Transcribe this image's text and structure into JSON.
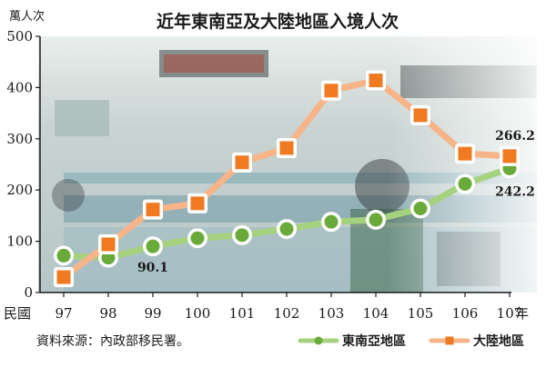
{
  "chart_data": {
    "type": "line",
    "title": "近年東南亞及大陸地區入境人次",
    "y_unit": "萬人次",
    "x_unit_left": "民國",
    "x_unit_right": "年",
    "x": [
      "97",
      "98",
      "99",
      "100",
      "101",
      "102",
      "103",
      "104",
      "105",
      "106",
      "107"
    ],
    "ylim": [
      0,
      500
    ],
    "y_ticks": [
      0,
      100,
      200,
      300,
      400,
      500
    ],
    "grid": false,
    "legend_position": "bottom-right",
    "series": [
      {
        "name": "東南亞地區",
        "color": "#a6d27f",
        "marker_color": "#6aaa3a",
        "values": [
          72,
          68,
          90.1,
          106,
          112,
          124,
          138,
          142,
          164,
          212,
          242.2
        ]
      },
      {
        "name": "大陸地區",
        "color": "#f6b488",
        "marker_color": "#ef7a22",
        "values": [
          30,
          94,
          162,
          174,
          254,
          282,
          394,
          414,
          346,
          271,
          266.2
        ]
      }
    ],
    "data_labels": [
      {
        "series": 0,
        "index": 2,
        "text": "90.1"
      },
      {
        "series": 0,
        "index": 10,
        "text": "242.2"
      },
      {
        "series": 1,
        "index": 10,
        "text": "266.2"
      }
    ]
  },
  "source_note": "資料來源：內政部移民署。",
  "colors": {
    "photo_bg": "#cfd8d6",
    "axis": "#1a1a1a"
  }
}
